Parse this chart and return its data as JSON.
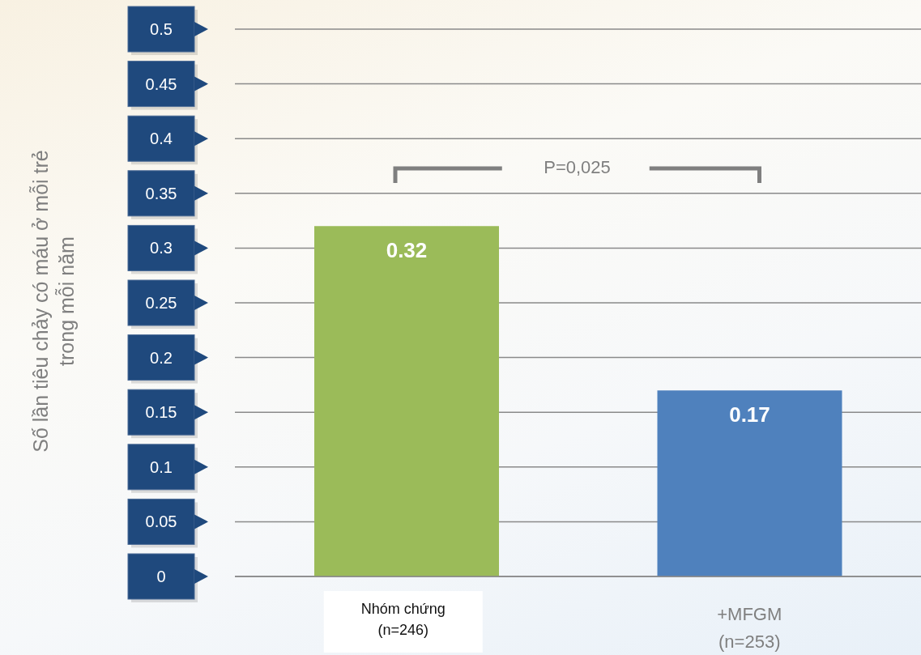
{
  "chart_data": {
    "type": "bar",
    "categories": [
      "Nhóm chứng\n(n=246)",
      "+MFGM\n(n=253)"
    ],
    "values": [
      0.32,
      0.17
    ],
    "colors": [
      "#9bbb59",
      "#4f81bd"
    ],
    "ylabel": "Số lần tiêu chảy có máu ở mỗi trẻ\ntrong mỗi năm",
    "ylim": [
      0,
      0.5
    ],
    "yticks": [
      0,
      0.05,
      0.1,
      0.15,
      0.2,
      0.25,
      0.3,
      0.35,
      0.4,
      0.45,
      0.5
    ],
    "grid": "y",
    "data_labels": true,
    "annotations": [
      "P=0,025"
    ]
  }
}
